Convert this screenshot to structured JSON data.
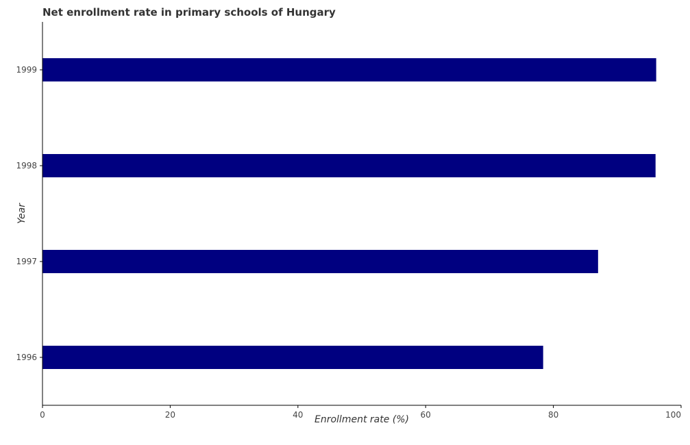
{
  "chart_data": {
    "type": "bar",
    "orientation": "horizontal",
    "title": "Net enrollment rate in primary schools of Hungary",
    "xlabel": "Enrollment rate (%)",
    "ylabel": "Year",
    "categories": [
      "1996",
      "1997",
      "1998",
      "1999"
    ],
    "values": [
      78.4,
      87.0,
      96.0,
      96.1
    ],
    "xlim": [
      0,
      100
    ],
    "xticks": [
      0,
      20,
      40,
      60,
      80,
      100
    ],
    "xtick_labels": [
      "0",
      "20",
      "40",
      "60",
      "80",
      "100"
    ],
    "grid": false,
    "legend": "none",
    "bar_color": "#000080"
  }
}
